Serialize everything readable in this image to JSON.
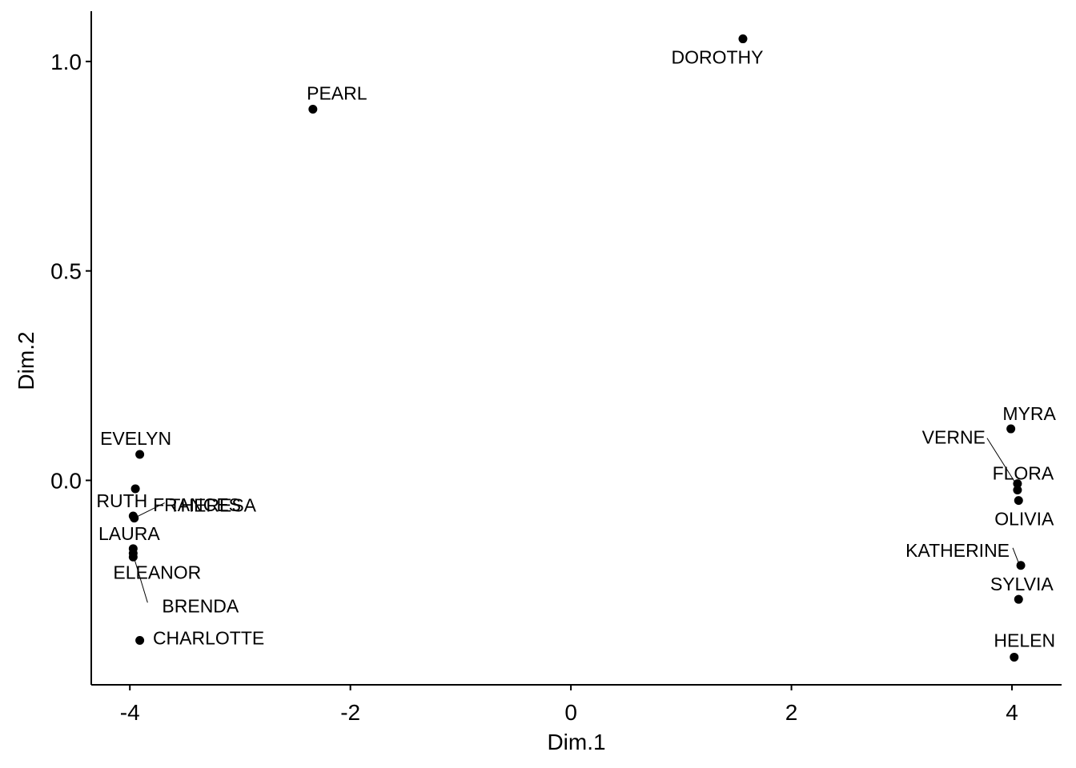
{
  "chart_data": {
    "type": "scatter",
    "title": "",
    "xlabel": "Dim.1",
    "ylabel": "Dim.2",
    "xlim": [
      -4.35,
      4.45
    ],
    "ylim": [
      -0.488,
      1.12
    ],
    "x_ticks": [
      {
        "value": -4,
        "label": "-4"
      },
      {
        "value": -2,
        "label": "-2"
      },
      {
        "value": 0,
        "label": "0"
      },
      {
        "value": 2,
        "label": "2"
      },
      {
        "value": 4,
        "label": "4"
      }
    ],
    "y_ticks": [
      {
        "value": 0.0,
        "label": "0.0"
      },
      {
        "value": 0.5,
        "label": "0.5"
      },
      {
        "value": 1.0,
        "label": "1.0"
      }
    ],
    "grid": false,
    "point_color": "#000000",
    "points": [
      {
        "name": "DOROTHY",
        "x": 1.56,
        "y": 1.054
      },
      {
        "name": "PEARL",
        "x": -2.34,
        "y": 0.886
      },
      {
        "name": "MYRA",
        "x": 3.99,
        "y": 0.123
      },
      {
        "name": "EVELYN",
        "x": -3.91,
        "y": 0.062
      },
      {
        "name": "FRANCES",
        "x": -3.95,
        "y": -0.02
      },
      {
        "name": "VERNE",
        "x": 4.05,
        "y": -0.008
      },
      {
        "name": "FLORA",
        "x": 4.05,
        "y": -0.023
      },
      {
        "name": "OLIVIA",
        "x": 4.06,
        "y": -0.048
      },
      {
        "name": "RUTH",
        "x": -3.97,
        "y": -0.085
      },
      {
        "name": "THERESA",
        "x": -3.96,
        "y": -0.09
      },
      {
        "name": "LAURA",
        "x": -3.97,
        "y": -0.163
      },
      {
        "name": "ELEANOR",
        "x": -3.97,
        "y": -0.174
      },
      {
        "name": "BRENDA",
        "x": -3.97,
        "y": -0.183
      },
      {
        "name": "KATHERINE",
        "x": 4.08,
        "y": -0.203
      },
      {
        "name": "SYLVIA",
        "x": 4.06,
        "y": -0.284
      },
      {
        "name": "CHARLOTTE",
        "x": -3.91,
        "y": -0.382
      },
      {
        "name": "HELEN",
        "x": 4.02,
        "y": -0.422
      }
    ]
  }
}
